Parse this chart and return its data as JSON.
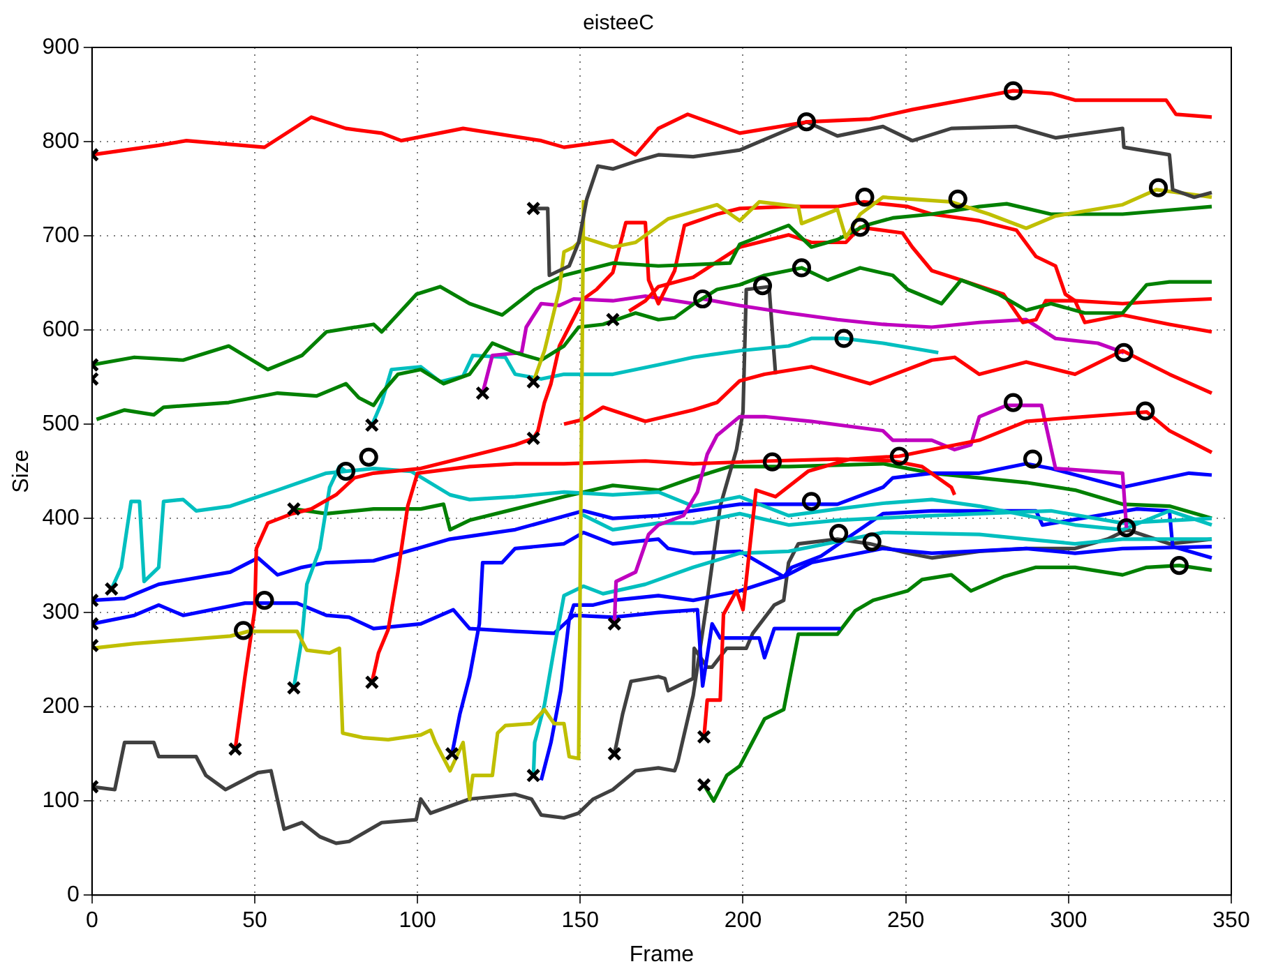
{
  "chart_data": {
    "type": "line",
    "title": "eisteeC",
    "xlabel": "Frame",
    "ylabel": "Size",
    "xlim": [
      0,
      350
    ],
    "xticks": [
      0,
      50,
      100,
      150,
      200,
      250,
      300,
      350
    ],
    "ylim": [
      0,
      900
    ],
    "yticks": [
      0,
      100,
      200,
      300,
      400,
      500,
      600,
      700,
      800,
      900
    ],
    "grid": true,
    "legend": false,
    "marker": "none",
    "line_style": "solid",
    "series": [
      {
        "color": "#ff0000",
        "x": [
          0,
          20.5,
          29,
          53,
          67.4,
          78,
          89,
          95,
          114,
          138,
          145,
          160,
          167,
          174,
          183,
          199,
          220,
          239,
          252,
          283,
          295,
          302,
          330,
          333,
          344
        ],
        "values": [
          786,
          796,
          801,
          794,
          826,
          814,
          809,
          801,
          814,
          801,
          794,
          801,
          786,
          814,
          829,
          809,
          821,
          824,
          834,
          854,
          851,
          844,
          844,
          829,
          826
        ]
      },
      {
        "color": "#404040",
        "x": [
          135.6,
          140,
          140.5,
          146.6,
          149.5,
          152,
          155.4,
          160,
          167,
          174,
          184.7,
          199,
          219.5,
          229,
          243,
          252,
          264,
          284,
          296,
          316.6,
          317,
          331,
          332,
          338.6,
          344
        ],
        "values": [
          729,
          729,
          658,
          668,
          693,
          739,
          774,
          771,
          779,
          786,
          784,
          791,
          821,
          806,
          816,
          801,
          814,
          816,
          804,
          814,
          794,
          786,
          749,
          741,
          746
        ]
      },
      {
        "color": "#bfbf00",
        "x": [
          135.6,
          139,
          143.6,
          145,
          148,
          151,
          160,
          167,
          177,
          192,
          199,
          205,
          217,
          218,
          229,
          231.6,
          236,
          243,
          264,
          275.6,
          287,
          296,
          316.6,
          327,
          344
        ],
        "values": [
          545,
          578,
          643,
          683,
          688,
          698,
          688,
          693,
          718,
          733,
          716,
          736,
          731,
          713,
          728,
          698,
          723,
          741,
          736,
          723,
          708,
          721,
          733,
          749,
          741
        ]
      },
      {
        "color": "#bfbf00",
        "x": [
          0,
          13,
          42.5,
          48,
          63,
          66,
          73,
          76,
          77,
          83.5,
          91,
          101,
          104,
          105.5,
          110,
          114,
          116,
          117,
          123,
          124.6,
          127,
          135,
          139,
          142,
          145,
          146.6,
          149.5,
          151
        ],
        "values": [
          262,
          267,
          275,
          280,
          280,
          260,
          257,
          262,
          172,
          167,
          165,
          170,
          175,
          162,
          132,
          162,
          102,
          127,
          127,
          172,
          180,
          182,
          197,
          182,
          182,
          147,
          145,
          738
        ]
      },
      {
        "color": "#008000",
        "x": [
          0,
          13,
          28,
          42,
          54,
          64.5,
          72,
          86.5,
          89,
          99.7,
          107,
          116,
          126,
          136,
          145,
          160,
          174,
          196,
          199,
          214,
          221,
          229,
          237.5,
          246,
          258,
          272.6,
          281,
          294.6,
          316.6,
          344
        ],
        "values": [
          563,
          571,
          568,
          583,
          558,
          573,
          598,
          606,
          598,
          638,
          646,
          628,
          616,
          643,
          658,
          671,
          668,
          671,
          691,
          711,
          688,
          696,
          711,
          719,
          723,
          731,
          734,
          723,
          723,
          731
        ]
      },
      {
        "color": "#008000",
        "x": [
          1.4,
          10,
          19,
          22,
          42,
          57,
          69,
          78,
          82,
          86.5,
          89,
          94,
          101,
          108,
          116,
          123,
          130,
          138,
          145,
          149.5,
          157,
          167,
          174,
          179,
          185,
          192,
          199,
          206.6,
          218,
          226,
          236,
          246,
          250.6,
          261,
          267,
          278.5,
          287,
          294.6,
          305,
          316.6,
          324,
          331,
          344
        ],
        "values": [
          505,
          515,
          510,
          518,
          523,
          533,
          530,
          543,
          528,
          520,
          533,
          553,
          558,
          543,
          553,
          586,
          576,
          568,
          583,
          603,
          606,
          618,
          611,
          613,
          628,
          643,
          648,
          658,
          666,
          653,
          666,
          658,
          643,
          628,
          653,
          638,
          621,
          628,
          618,
          618,
          648,
          651,
          651
        ]
      },
      {
        "color": "#ff0000",
        "x": [
          44,
          47,
          50,
          50.5,
          54,
          61.5,
          67.4,
          75,
          80.6,
          86.5,
          101,
          116,
          130,
          135.6,
          137,
          139,
          141,
          143.6,
          151,
          155,
          160,
          164,
          170,
          171,
          174,
          179,
          182,
          192,
          199,
          214,
          229,
          237,
          250.6,
          258,
          272.6,
          284,
          290,
          296,
          299,
          302,
          305,
          316.6,
          331,
          344
        ],
        "values": [
          155,
          232,
          303,
          368,
          395,
          405,
          410,
          425,
          443,
          448,
          453,
          466,
          478,
          485,
          493,
          523,
          543,
          583,
          633,
          643,
          661,
          714,
          714,
          653,
          628,
          663,
          711,
          723,
          729,
          731,
          731,
          736,
          731,
          723,
          716,
          706,
          678,
          668,
          638,
          631,
          608,
          616,
          606,
          598
        ]
      },
      {
        "color": "#ff0000",
        "x": [
          165,
          170,
          174,
          184.7,
          199,
          214,
          221,
          231.6,
          236,
          249,
          252,
          258,
          267,
          280,
          286,
          290,
          293,
          302,
          316.6,
          331,
          344
        ],
        "values": [
          620,
          631,
          646,
          656,
          688,
          701,
          693,
          693,
          709,
          703,
          688,
          663,
          653,
          638,
          608,
          611,
          631,
          631,
          628,
          631,
          633
        ]
      },
      {
        "color": "#ff0000",
        "x": [
          86,
          88,
          91,
          94,
          97,
          100,
          116,
          130,
          145,
          170,
          184.7,
          209,
          229,
          246,
          255,
          264,
          265
        ],
        "values": [
          226,
          257,
          282,
          343,
          413,
          448,
          455,
          458,
          458,
          461,
          458,
          461,
          463,
          461,
          455,
          433,
          425
        ]
      },
      {
        "color": "#ff0000",
        "x": [
          145,
          151,
          157,
          170,
          184.7,
          192,
          199,
          206.6,
          221,
          236,
          239,
          258,
          265,
          272.6,
          287,
          302,
          316.6,
          331,
          344
        ],
        "values": [
          500,
          505,
          518,
          503,
          515,
          523,
          546,
          553,
          561,
          546,
          543,
          568,
          571,
          553,
          566,
          553,
          578,
          553,
          533
        ]
      },
      {
        "color": "#ff0000",
        "x": [
          188,
          189,
          193,
          194,
          198,
          200,
          204,
          210,
          220,
          233,
          248,
          258,
          272.6,
          287,
          297.5,
          316.6,
          324,
          331,
          344
        ],
        "values": [
          167,
          207,
          207,
          298,
          323,
          303,
          430,
          423,
          450,
          463,
          466,
          473,
          483,
          503,
          506,
          511,
          513,
          493,
          470
        ]
      },
      {
        "color": "#bf00bf",
        "x": [
          120,
          123,
          132,
          133.4,
          138,
          143.6,
          148,
          160,
          170,
          184.7,
          187.6,
          199,
          214,
          229,
          243,
          258,
          272.6,
          287,
          296,
          309,
          317
        ],
        "values": [
          533,
          573,
          576,
          603,
          628,
          626,
          633,
          631,
          636,
          628,
          633,
          626,
          618,
          611,
          606,
          603,
          608,
          611,
          591,
          586,
          576
        ]
      },
      {
        "color": "#bf00bf",
        "x": [
          160.5,
          161,
          167,
          171,
          174,
          181.7,
          186,
          189,
          192,
          199,
          206.6,
          221,
          243,
          246,
          258,
          265,
          270,
          272.6,
          281,
          291.7,
          296,
          316.6,
          317.8
        ],
        "values": [
          288,
          333,
          343,
          383,
          393,
          403,
          428,
          468,
          488,
          508,
          508,
          503,
          493,
          483,
          483,
          473,
          478,
          508,
          520,
          520,
          453,
          448,
          390
        ]
      },
      {
        "color": "#00bfbf",
        "x": [
          6,
          9,
          12,
          14.6,
          16,
          20.5,
          22,
          28,
          32,
          42.5,
          57,
          72,
          86.5,
          98,
          110,
          116,
          130,
          145,
          160,
          174,
          184.7,
          199,
          214,
          229,
          243,
          258,
          272.6,
          287,
          302,
          316.6,
          331,
          344
        ],
        "values": [
          325,
          348,
          418,
          418,
          333,
          348,
          418,
          420,
          408,
          413,
          430,
          448,
          453,
          450,
          425,
          420,
          423,
          428,
          425,
          428,
          413,
          423,
          403,
          410,
          416,
          420,
          413,
          403,
          393,
          388,
          408,
          393
        ]
      },
      {
        "color": "#00bfbf",
        "x": [
          62,
          64.5,
          66,
          70,
          73,
          76,
          78
        ],
        "values": [
          220,
          273,
          330,
          368,
          433,
          455,
          450
        ]
      },
      {
        "color": "#00bfbf",
        "x": [
          86,
          89,
          92,
          101,
          107,
          114,
          117,
          127,
          130,
          138,
          145,
          160,
          174,
          184.7,
          199,
          214,
          221,
          231,
          243,
          260
        ],
        "values": [
          499,
          523,
          558,
          561,
          545,
          551,
          573,
          571,
          553,
          548,
          553,
          553,
          563,
          571,
          578,
          583,
          591,
          591,
          586,
          576
        ]
      },
      {
        "color": "#00bfbf",
        "x": [
          135.6,
          136,
          139,
          142,
          145,
          151,
          157,
          170,
          184.7,
          199,
          214,
          225.7,
          243,
          272.6,
          287,
          302,
          316.6,
          331,
          344
        ],
        "values": [
          125,
          162,
          202,
          262,
          318,
          328,
          320,
          330,
          348,
          363,
          365,
          373,
          385,
          383,
          378,
          373,
          378,
          378,
          378
        ]
      },
      {
        "color": "#00bfbf",
        "x": [
          150,
          160,
          174,
          184.7,
          199,
          214,
          229,
          258,
          272.6,
          294.6,
          316.6,
          344
        ],
        "values": [
          405,
          388,
          395,
          395,
          405,
          393,
          398,
          403,
          405,
          408,
          395,
          400
        ]
      },
      {
        "color": "#0000ff",
        "x": [
          0,
          10,
          20.5,
          42.5,
          51,
          57,
          64.5,
          72,
          86.5,
          100,
          110,
          130,
          151,
          160,
          174,
          199,
          229,
          243,
          246,
          258,
          272.6,
          287,
          294.6,
          316.6,
          337,
          344
        ],
        "values": [
          313,
          315,
          330,
          343,
          358,
          340,
          348,
          353,
          355,
          368,
          378,
          388,
          408,
          400,
          403,
          415,
          415,
          433,
          443,
          448,
          448,
          458,
          453,
          433,
          448,
          446
        ]
      },
      {
        "color": "#0000ff",
        "x": [
          0,
          13,
          20.5,
          28,
          47,
          63,
          72,
          79,
          86.5,
          101,
          111,
          116,
          130,
          142,
          148,
          160,
          174,
          186,
          187.6,
          190.5,
          193,
          205,
          206.6,
          209.6,
          230
        ],
        "values": [
          288,
          297,
          308,
          297,
          310,
          310,
          297,
          295,
          283,
          288,
          303,
          283,
          280,
          278,
          297,
          295,
          300,
          303,
          222,
          288,
          273,
          273,
          252,
          283,
          283
        ]
      },
      {
        "color": "#0000ff",
        "x": [
          110.6,
          113,
          116,
          119,
          120,
          126,
          130,
          145,
          151,
          160,
          174,
          177,
          184.7,
          199,
          212.5,
          221,
          243,
          258,
          287,
          302,
          316.6,
          344
        ],
        "values": [
          150,
          192,
          232,
          288,
          353,
          353,
          368,
          373,
          385,
          373,
          378,
          368,
          363,
          365,
          338,
          353,
          368,
          363,
          368,
          363,
          368,
          370
        ]
      },
      {
        "color": "#0000ff",
        "x": [
          138,
          141,
          144,
          146.6,
          148,
          154,
          160,
          174,
          184.7,
          199,
          212.5,
          215,
          224,
          243,
          258,
          290,
          292,
          321,
          331,
          332,
          344
        ],
        "values": [
          122,
          162,
          217,
          293,
          308,
          308,
          313,
          318,
          313,
          323,
          338,
          348,
          360,
          405,
          408,
          408,
          393,
          410,
          408,
          370,
          358
        ]
      },
      {
        "color": "#404040",
        "x": [
          0,
          7,
          10,
          19,
          20.5,
          32,
          35,
          41,
          51,
          55,
          59,
          64.5,
          70,
          75,
          79,
          89,
          99.6,
          101,
          104,
          116,
          130,
          135,
          138,
          145,
          149.5,
          154,
          160,
          167,
          174,
          179,
          180,
          184.7,
          189,
          193,
          198,
          200,
          201,
          208,
          210
        ],
        "values": [
          115,
          112,
          162,
          162,
          147,
          147,
          127,
          112,
          130,
          132,
          70,
          77,
          62,
          55,
          57,
          77,
          80,
          102,
          87,
          102,
          107,
          102,
          85,
          82,
          87,
          102,
          112,
          132,
          135,
          132,
          142,
          212,
          313,
          413,
          473,
          513,
          643,
          646,
          553
        ]
      },
      {
        "color": "#404040",
        "x": [
          160.5,
          163,
          165.6,
          174,
          176,
          177,
          184.7,
          185,
          189,
          190.5,
          195,
          201,
          203,
          209.6,
          212.5,
          214,
          217,
          229,
          239,
          250.6,
          258,
          272.6,
          287,
          302,
          312,
          318,
          331,
          344
        ],
        "values": [
          150,
          192,
          227,
          232,
          230,
          217,
          230,
          262,
          242,
          242,
          262,
          262,
          278,
          308,
          313,
          353,
          373,
          378,
          373,
          363,
          358,
          365,
          368,
          368,
          378,
          388,
          373,
          378
        ]
      },
      {
        "color": "#008000",
        "x": [
          62,
          72,
          86.5,
          101,
          108,
          110,
          116,
          130,
          145,
          160,
          174,
          184.7,
          196,
          214,
          243,
          258,
          272.6,
          287,
          302,
          316.6,
          331,
          344
        ],
        "values": [
          410,
          405,
          410,
          410,
          415,
          388,
          398,
          410,
          423,
          435,
          430,
          443,
          455,
          455,
          458,
          448,
          443,
          438,
          430,
          415,
          413,
          400
        ]
      },
      {
        "color": "#008000",
        "x": [
          188,
          191,
          195,
          199,
          206.6,
          212.5,
          217,
          229,
          234.5,
          240,
          250.6,
          255,
          264,
          270,
          280,
          290,
          302,
          316.6,
          324,
          334,
          344
        ],
        "values": [
          117,
          100,
          127,
          137,
          187,
          197,
          277,
          277,
          302,
          313,
          323,
          335,
          340,
          323,
          338,
          348,
          348,
          340,
          348,
          350,
          345
        ]
      },
      {
        "type": "scatter",
        "marker": "cross",
        "color": "#000000",
        "x": [
          0,
          0,
          0,
          86,
          120,
          135.6,
          135.6,
          160,
          135.6,
          6,
          0,
          0,
          0,
          0,
          44,
          62,
          62,
          86,
          110.6,
          135.6,
          160.5,
          160.5,
          188,
          188
        ],
        "values": [
          786,
          563,
          548,
          499,
          533,
          729,
          545,
          611,
          485,
          325,
          313,
          288,
          265,
          115,
          155,
          410,
          220,
          226,
          150,
          127,
          288,
          150,
          168,
          117
        ]
      },
      {
        "type": "scatter",
        "marker": "circle",
        "color": "#000000",
        "x": [
          219.5,
          283,
          327.6,
          237.4,
          236,
          266,
          206,
          218,
          187.6,
          231,
          317,
          283,
          323.6,
          289,
          209,
          248,
          78,
          85,
          53,
          46.5,
          221,
          229.4,
          239.6,
          317.8,
          334
        ],
        "values": [
          821,
          854,
          751,
          741,
          709,
          739,
          647,
          666,
          633,
          591,
          576,
          523,
          514,
          463,
          460,
          466,
          450,
          465,
          313,
          281,
          418,
          384,
          375,
          390,
          350
        ]
      }
    ]
  }
}
